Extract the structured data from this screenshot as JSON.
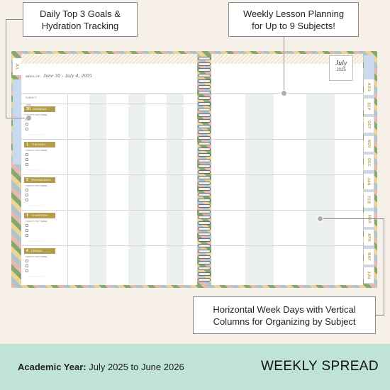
{
  "callouts": {
    "goals": {
      "line1": "Daily Top 3 Goals &",
      "line2": "Hydration Tracking"
    },
    "lessons": {
      "line1": "Weekly Lesson Planning",
      "line2": "for Up to 9 Subjects!"
    },
    "week": {
      "line1": "Horizontal Week Days with Vertical",
      "line2": "Columns for Organizing by Subject"
    }
  },
  "planner": {
    "left_tab": "JUL",
    "week_label": "WEEK OF:",
    "week_range": "June 30 - July 4, 2025",
    "month_tag": {
      "month": "July",
      "year": "2025"
    },
    "side_labels": [
      "SUBJECT",
      "TIME"
    ],
    "days": [
      {
        "num": "30",
        "name": "MONDAY"
      },
      {
        "num": "1",
        "name": "TUESDAY"
      },
      {
        "num": "2",
        "name": "WEDNESDAY"
      },
      {
        "num": "3",
        "name": "THURSDAY"
      },
      {
        "num": "4",
        "name": "FRIDAY"
      }
    ],
    "goals_label": "TODAY'S TOP THREE",
    "hydration_label": "○ ○ ○ ○ ○ ○ ○ ○",
    "month_tabs": [
      "AUG",
      "SEP",
      "OCT",
      "NOV",
      "DEC",
      "JAN",
      "FEB",
      "MAR",
      "APR",
      "MAY",
      "JUN"
    ]
  },
  "footer": {
    "academic_label": "Academic Year:",
    "academic_value": "July 2025 to June 2026",
    "title": "WEEKLY SPREAD"
  }
}
